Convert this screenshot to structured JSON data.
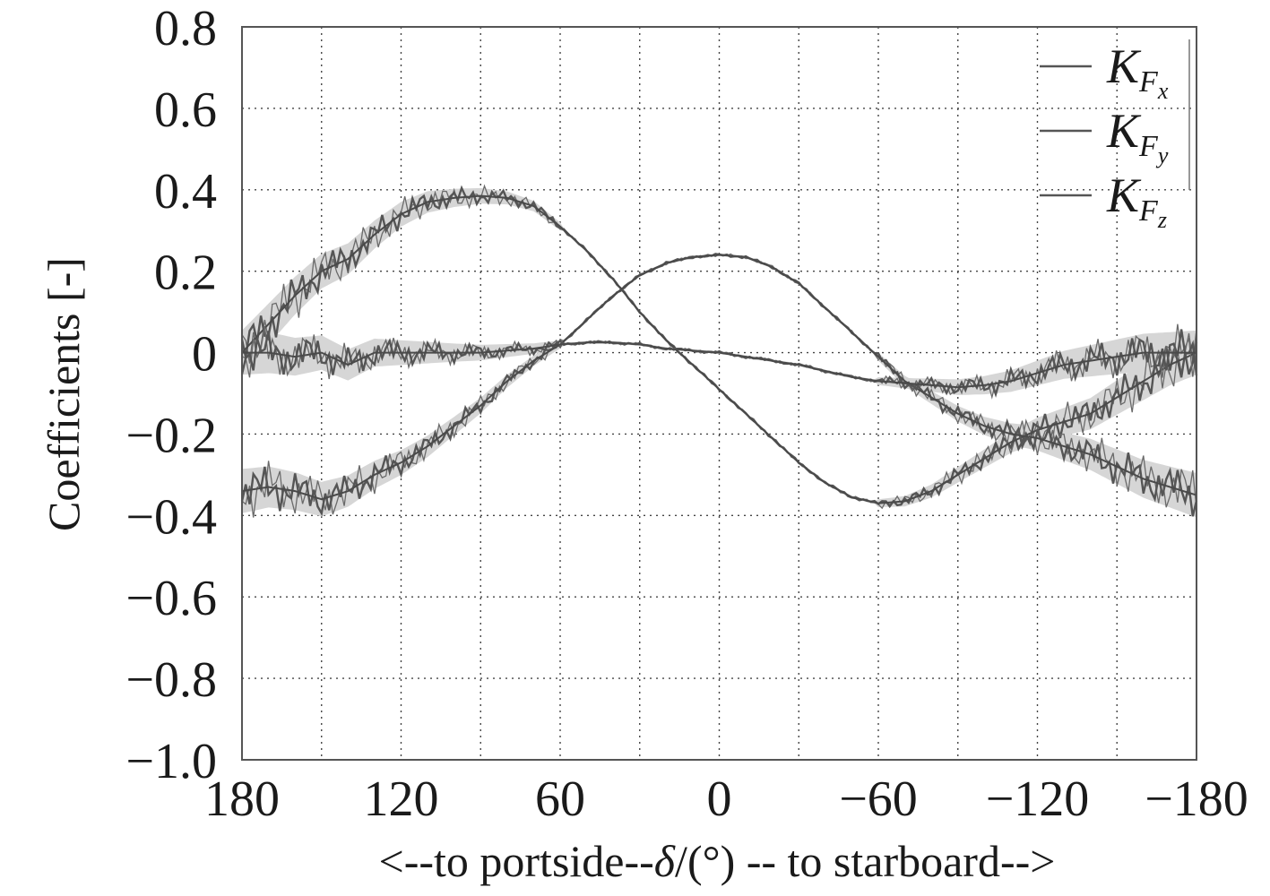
{
  "chart_data": {
    "type": "line",
    "title": "",
    "xlabel_parts": [
      "<--to portside--",
      "δ",
      "/(°) -- to starboard-->"
    ],
    "ylabel": "Coefficients [-]",
    "xlim": [
      180,
      -180
    ],
    "ylim": [
      -1.0,
      0.8
    ],
    "x_ticks": [
      180,
      120,
      60,
      0,
      -60,
      -120,
      -180
    ],
    "x_tick_labels": [
      "180",
      "120",
      "60",
      "0",
      "−60",
      "−120",
      "−180"
    ],
    "x_minor_step": 30,
    "y_ticks": [
      0.8,
      0.6,
      0.4,
      0.2,
      0,
      -0.2,
      -0.4,
      -0.6,
      -0.8,
      -1.0
    ],
    "y_tick_labels": [
      "0.8",
      "0.6",
      "0.4",
      "0.2",
      "0",
      "−0.2",
      "−0.4",
      "−0.6",
      "−0.8",
      "−1.0"
    ],
    "grid": true,
    "legend_position": "top-right",
    "line_color": "#555555",
    "band_color": "#d6d6d6",
    "series": [
      {
        "name": "K_Fx",
        "legend_main": "K",
        "legend_sub": "F",
        "legend_subsub": "x",
        "x": [
          180,
          170,
          160,
          150,
          140,
          130,
          120,
          110,
          100,
          90,
          80,
          70,
          60,
          50,
          40,
          30,
          20,
          10,
          0,
          -10,
          -20,
          -30,
          -40,
          -50,
          -60,
          -70,
          -80,
          -90,
          -100,
          -110,
          -120,
          -130,
          -140,
          -150,
          -160,
          -170,
          -180
        ],
        "y": [
          0.0,
          0.07,
          0.14,
          0.2,
          0.23,
          0.29,
          0.34,
          0.37,
          0.38,
          0.385,
          0.38,
          0.36,
          0.31,
          0.25,
          0.18,
          0.1,
          0.03,
          -0.03,
          -0.09,
          -0.15,
          -0.21,
          -0.27,
          -0.32,
          -0.355,
          -0.37,
          -0.365,
          -0.34,
          -0.3,
          -0.26,
          -0.22,
          -0.19,
          -0.17,
          -0.15,
          -0.11,
          -0.07,
          -0.03,
          0.0
        ]
      },
      {
        "name": "K_Fy",
        "legend_main": "K",
        "legend_sub": "F",
        "legend_subsub": "y",
        "x": [
          180,
          170,
          160,
          150,
          140,
          130,
          120,
          110,
          100,
          90,
          80,
          70,
          60,
          50,
          40,
          30,
          20,
          10,
          0,
          -10,
          -20,
          -30,
          -40,
          -50,
          -60,
          -70,
          -80,
          -90,
          -100,
          -110,
          -120,
          -130,
          -140,
          -150,
          -160,
          -170,
          -180
        ],
        "y": [
          -0.34,
          -0.33,
          -0.34,
          -0.36,
          -0.34,
          -0.3,
          -0.27,
          -0.23,
          -0.18,
          -0.13,
          -0.07,
          -0.02,
          0.02,
          0.08,
          0.14,
          0.19,
          0.22,
          0.235,
          0.24,
          0.235,
          0.21,
          0.17,
          0.11,
          0.05,
          -0.01,
          -0.07,
          -0.11,
          -0.15,
          -0.18,
          -0.2,
          -0.21,
          -0.23,
          -0.25,
          -0.28,
          -0.31,
          -0.33,
          -0.35
        ]
      },
      {
        "name": "K_Fz",
        "legend_main": "K",
        "legend_sub": "F",
        "legend_subsub": "z",
        "x": [
          180,
          170,
          160,
          150,
          140,
          130,
          120,
          110,
          100,
          90,
          80,
          70,
          60,
          50,
          40,
          30,
          20,
          10,
          0,
          -10,
          -20,
          -30,
          -40,
          -50,
          -60,
          -70,
          -80,
          -90,
          -100,
          -110,
          -120,
          -130,
          -140,
          -150,
          -160,
          -170,
          -180
        ],
        "y": [
          0.0,
          0.0,
          -0.01,
          0.0,
          -0.03,
          0.0,
          0.0,
          0.0,
          0.0,
          0.0,
          0.005,
          0.01,
          0.02,
          0.025,
          0.025,
          0.02,
          0.01,
          0.005,
          0.0,
          -0.01,
          -0.02,
          -0.03,
          -0.045,
          -0.06,
          -0.07,
          -0.075,
          -0.08,
          -0.085,
          -0.08,
          -0.07,
          -0.05,
          -0.03,
          -0.02,
          -0.01,
          0.0,
          0.0,
          0.0
        ]
      }
    ]
  }
}
